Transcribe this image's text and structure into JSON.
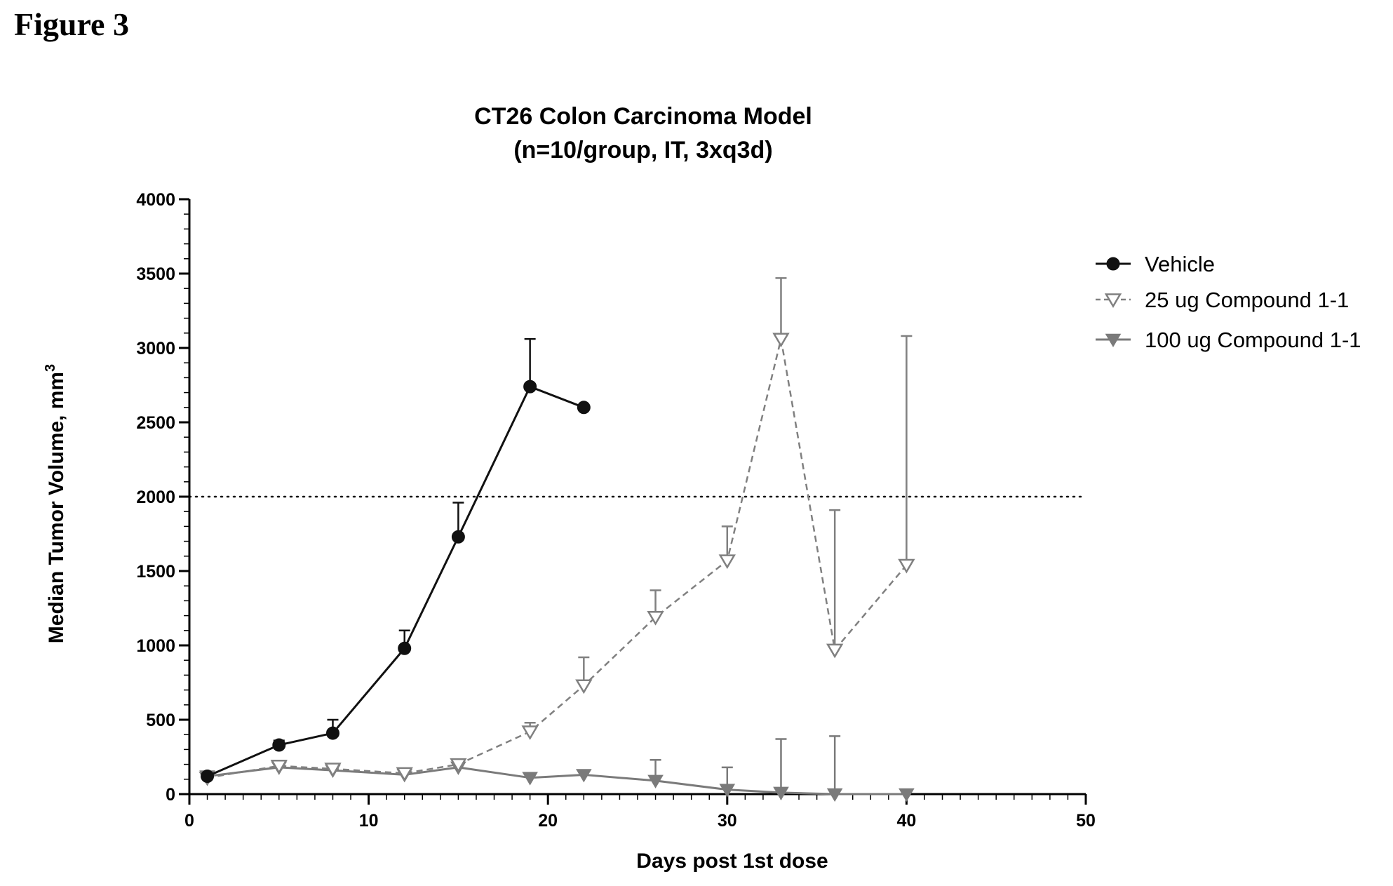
{
  "figure_label": "Figure 3",
  "chart_data": {
    "type": "line",
    "title": "CT26 Colon Carcinoma Model",
    "subtitle": "(n=10/group, IT, 3xq3d)",
    "xlabel": "Days post 1st dose",
    "ylabel": "Median Tumor Volume, mm",
    "ylabel_superscript": "3",
    "xlim": [
      0,
      50
    ],
    "ylim": [
      0,
      4000
    ],
    "x_ticks": [
      0,
      10,
      20,
      30,
      40,
      50
    ],
    "y_ticks": [
      0,
      500,
      1000,
      1500,
      2000,
      2500,
      3000,
      3500,
      4000
    ],
    "x_minor_step": 1,
    "y_minor_step": 100,
    "reference_line": {
      "y": 2000,
      "style": "dotted"
    },
    "grid": false,
    "legend_position": "top-right (outside plot)",
    "series": [
      {
        "name": "Vehicle",
        "marker": "filled-circle",
        "line_style": "solid",
        "color": "#111111",
        "x": [
          1,
          5,
          8,
          12,
          15,
          19,
          22
        ],
        "y": [
          120,
          330,
          410,
          980,
          1730,
          2740,
          2600
        ],
        "error_upper": [
          140,
          360,
          500,
          1100,
          1960,
          3060,
          null
        ]
      },
      {
        "name": "25 ug Compound 1-1",
        "marker": "open-triangle-down",
        "line_style": "dashed",
        "color": "#808080",
        "x": [
          1,
          5,
          8,
          12,
          15,
          19,
          22,
          26,
          30,
          33,
          36,
          40
        ],
        "y": [
          110,
          190,
          170,
          140,
          200,
          420,
          730,
          1190,
          1570,
          3060,
          970,
          1540
        ],
        "error_upper": [
          130,
          210,
          200,
          160,
          210,
          480,
          920,
          1370,
          1800,
          3470,
          1910,
          3080
        ]
      },
      {
        "name": "100 ug Compound 1-1",
        "marker": "filled-triangle-down",
        "line_style": "solid",
        "color": "#7a7a7a",
        "x": [
          1,
          5,
          8,
          12,
          15,
          19,
          22,
          26,
          30,
          33,
          36,
          40
        ],
        "y": [
          120,
          180,
          160,
          130,
          180,
          110,
          130,
          90,
          30,
          10,
          0,
          0
        ],
        "error_upper": [
          150,
          200,
          200,
          150,
          200,
          null,
          160,
          230,
          180,
          370,
          390,
          null
        ]
      }
    ]
  }
}
